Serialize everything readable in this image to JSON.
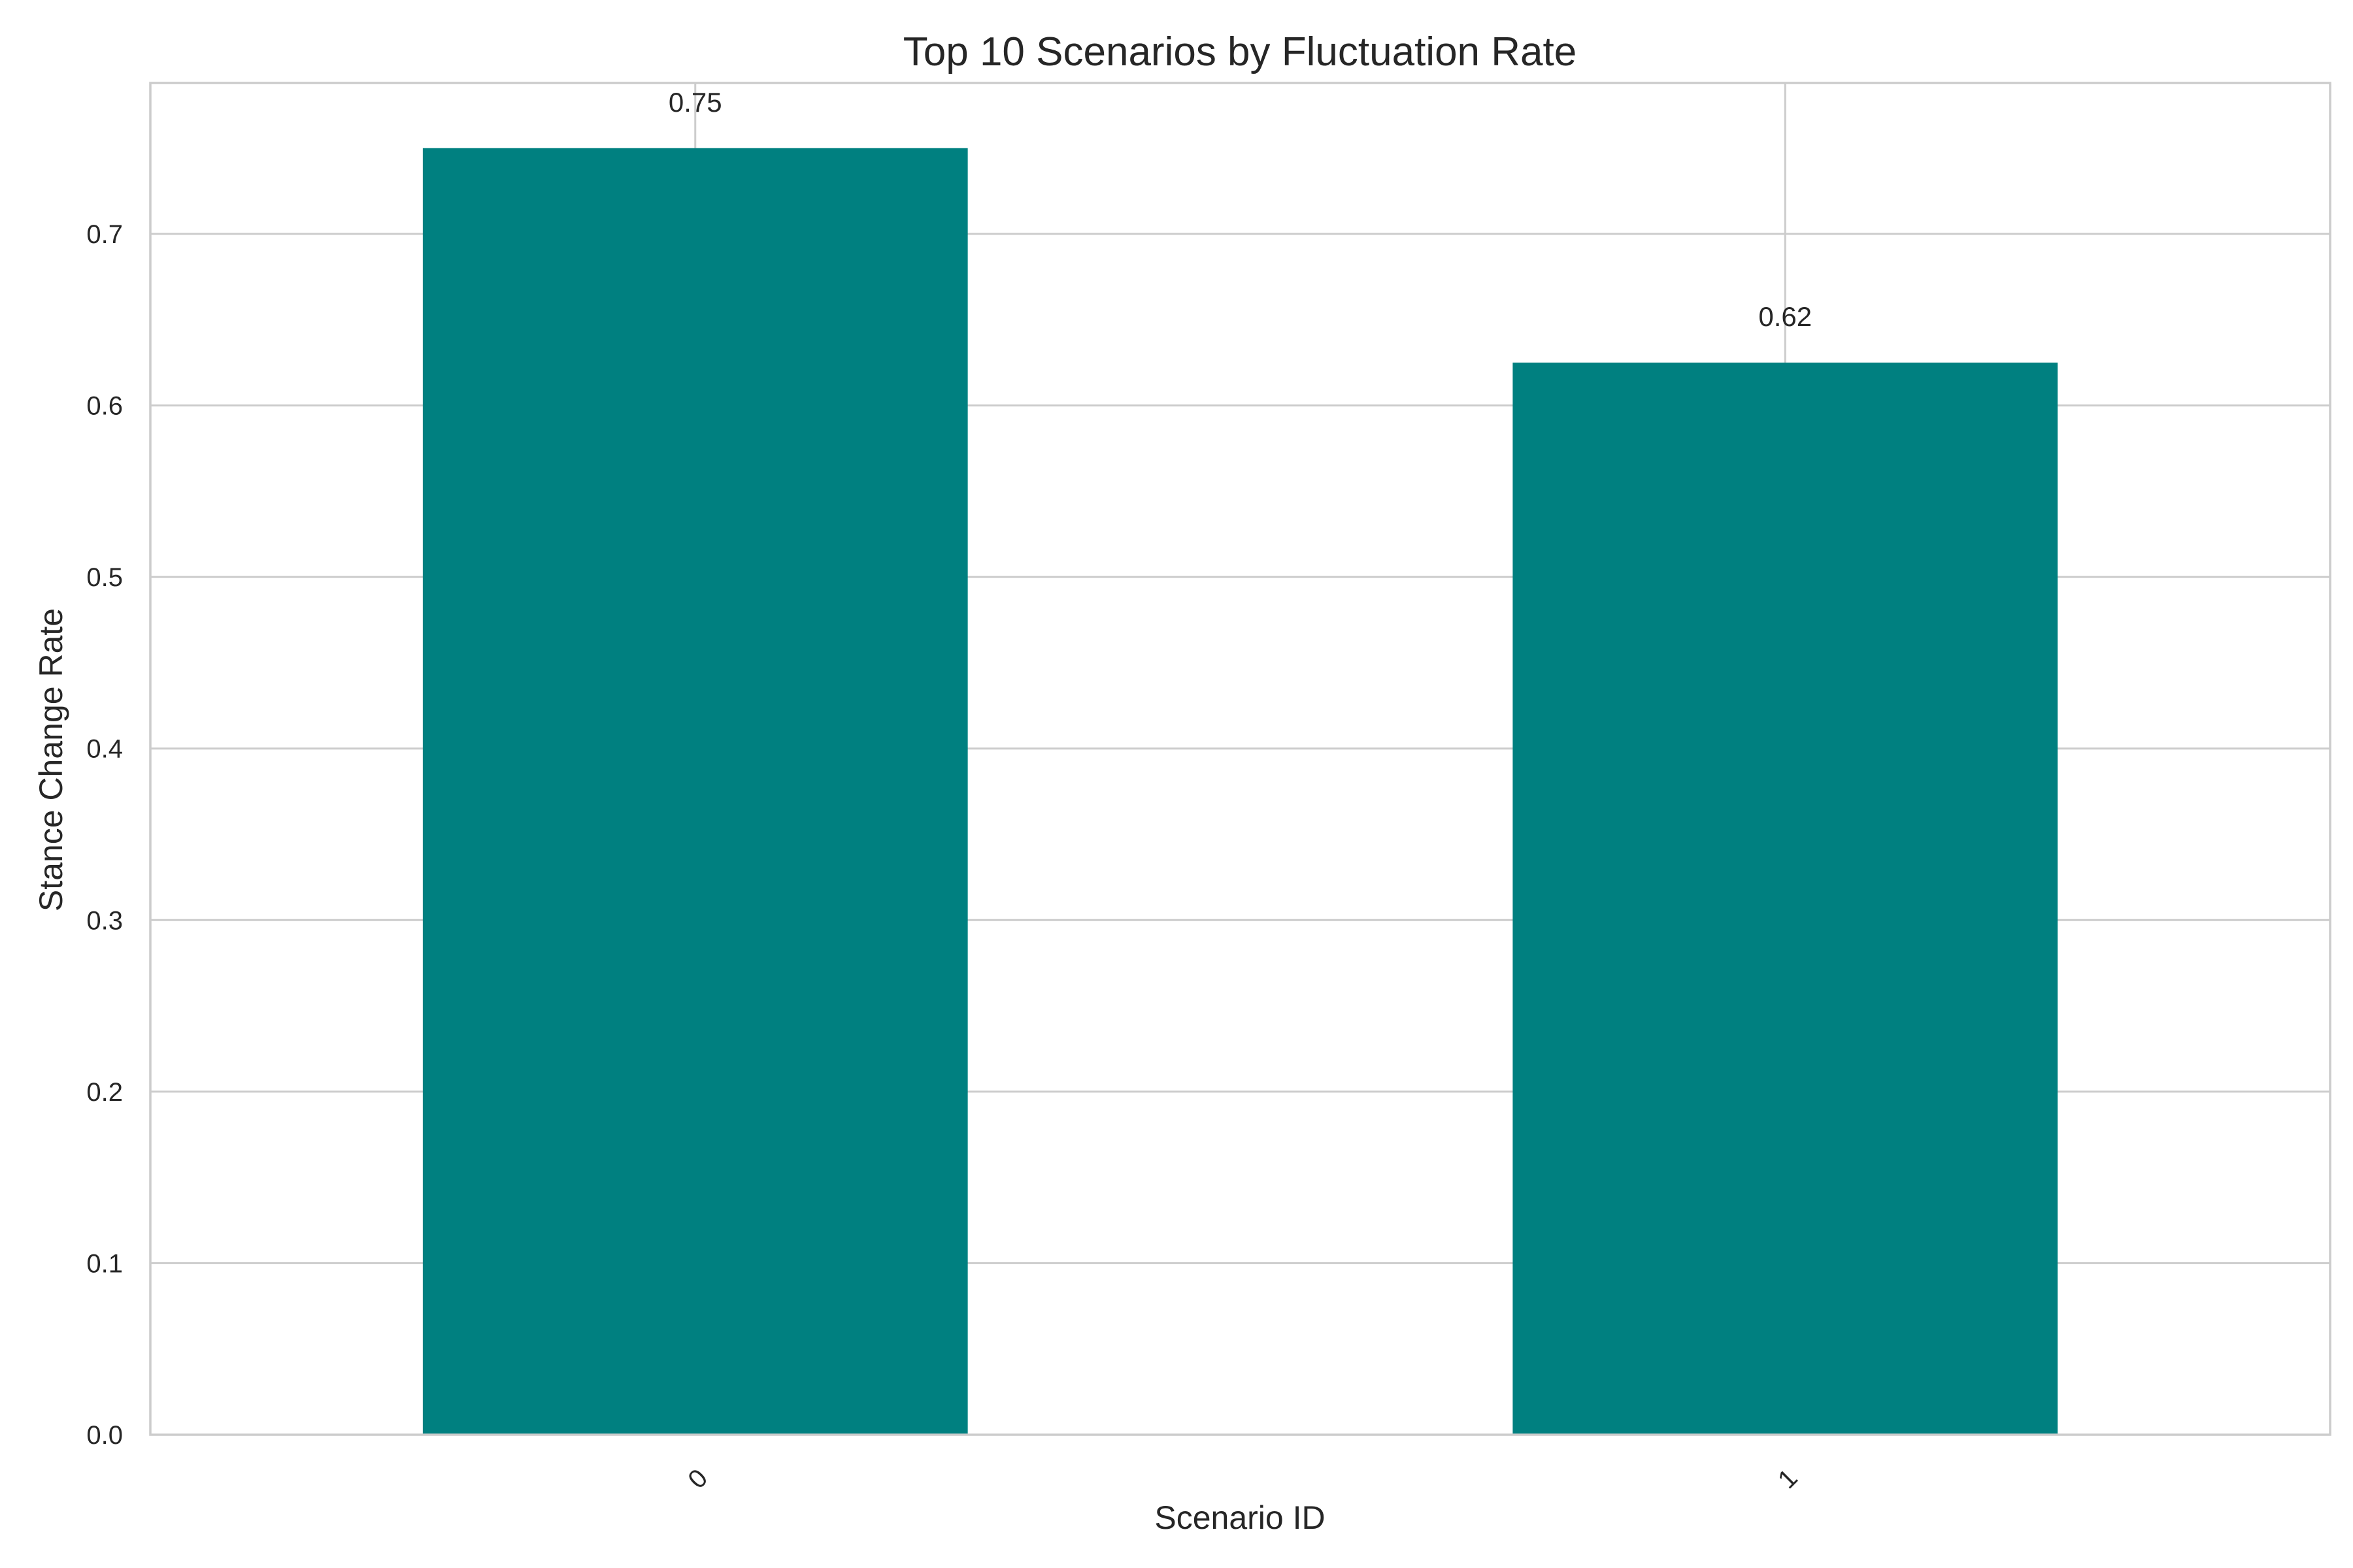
{
  "chart_data": {
    "type": "bar",
    "title": "Top 10 Scenarios by Fluctuation Rate",
    "xlabel": "Scenario ID",
    "ylabel": "Stance Change Rate",
    "categories": [
      "0",
      "1"
    ],
    "values": [
      0.75,
      0.625
    ],
    "data_labels": [
      "0.75",
      "0.62"
    ],
    "ylim": [
      0,
      0.788
    ],
    "yticks": [
      0.0,
      0.1,
      0.2,
      0.3,
      0.4,
      0.5,
      0.6,
      0.7
    ],
    "ytick_labels": [
      "0.0",
      "0.1",
      "0.2",
      "0.3",
      "0.4",
      "0.5",
      "0.6",
      "0.7"
    ],
    "xtick_rotation": 45,
    "grid": true,
    "bar_color": "#008080",
    "legend": "none"
  }
}
